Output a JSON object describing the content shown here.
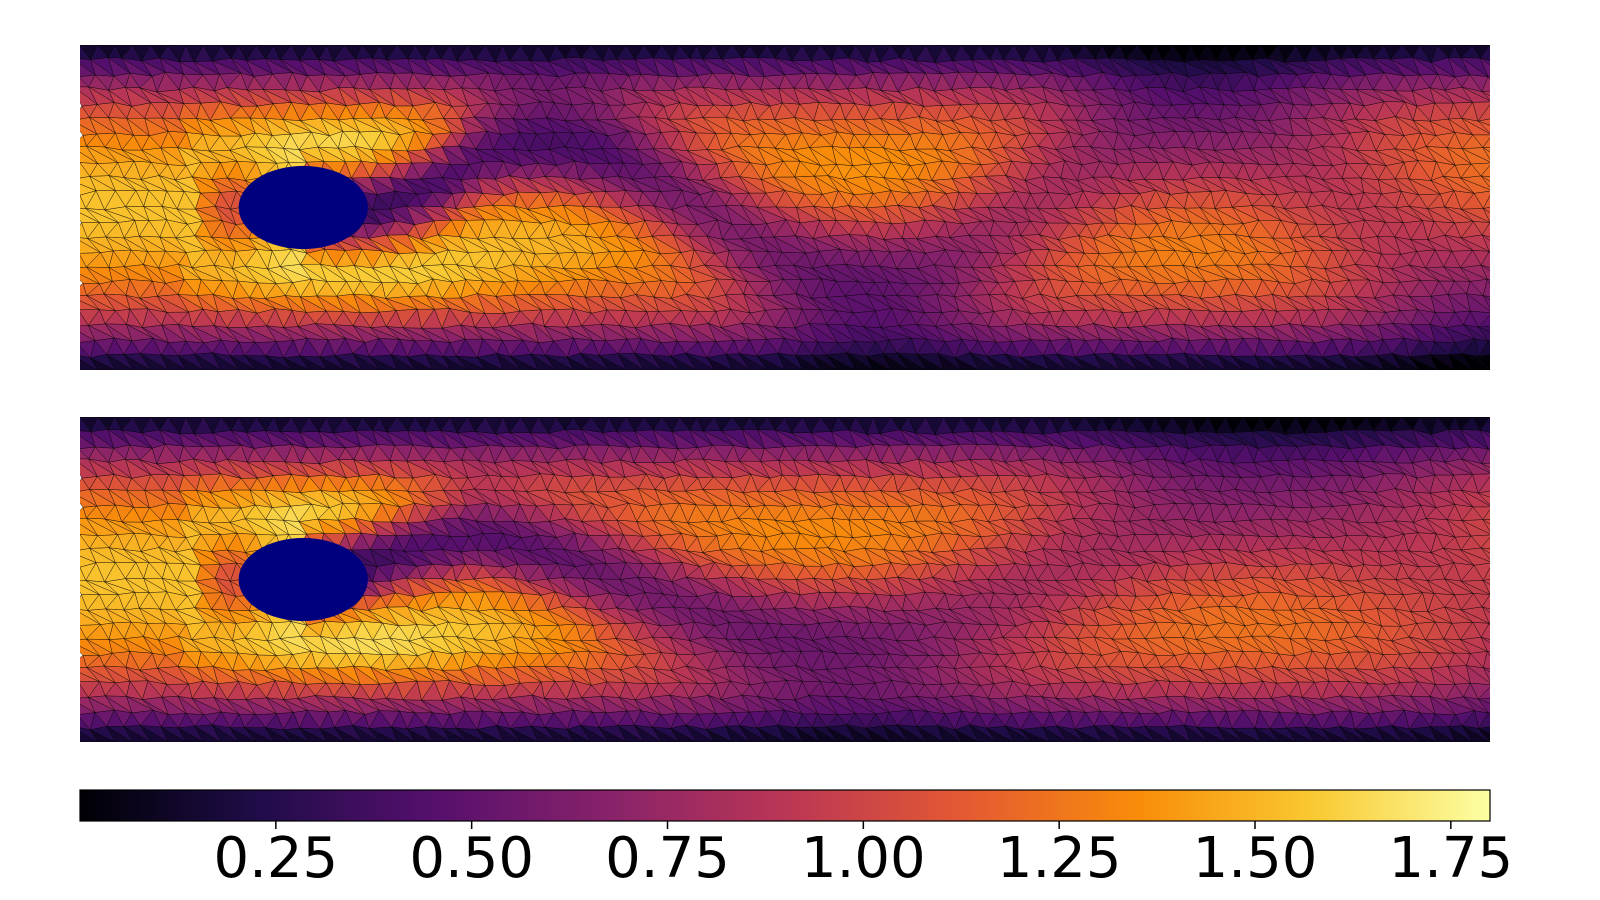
{
  "chart_data": {
    "type": "heatmap",
    "title": "",
    "colormap": "inferno",
    "panels": [
      {
        "name": "top",
        "obstacle": {
          "shape": "ellipse",
          "cx": 1.9,
          "cy": 1.25,
          "rx": 0.55,
          "ry": 0.32,
          "color": "#00007f"
        },
        "x_range": [
          0,
          12
        ],
        "y_range": [
          0,
          2.5
        ],
        "wake_wavelength": 5.6,
        "wake_amplitude": 0.45,
        "wake_phase": 0.0
      },
      {
        "name": "bottom",
        "obstacle": {
          "shape": "ellipse",
          "cx": 1.9,
          "cy": 1.25,
          "rx": 0.55,
          "ry": 0.32,
          "color": "#00007f"
        },
        "x_range": [
          0,
          12
        ],
        "y_range": [
          0,
          2.5
        ],
        "wake_wavelength": 7.2,
        "wake_amplitude": 0.38,
        "wake_phase": 1.3
      }
    ],
    "colorbar": {
      "orientation": "horizontal",
      "vmin": 0.0,
      "vmax": 1.8,
      "ticks": [
        0.25,
        0.5,
        0.75,
        1.0,
        1.25,
        1.5,
        1.75
      ],
      "tick_labels": [
        "0.25",
        "0.50",
        "0.75",
        "1.00",
        "1.25",
        "1.50",
        "1.75"
      ]
    }
  },
  "colors": {
    "inferno_stops": [
      "#000004",
      "#1f0c48",
      "#550f6d",
      "#88226a",
      "#ba3655",
      "#e35933",
      "#f98c0a",
      "#f9c932",
      "#fcffa4"
    ],
    "mesh_edge": "#000000"
  }
}
